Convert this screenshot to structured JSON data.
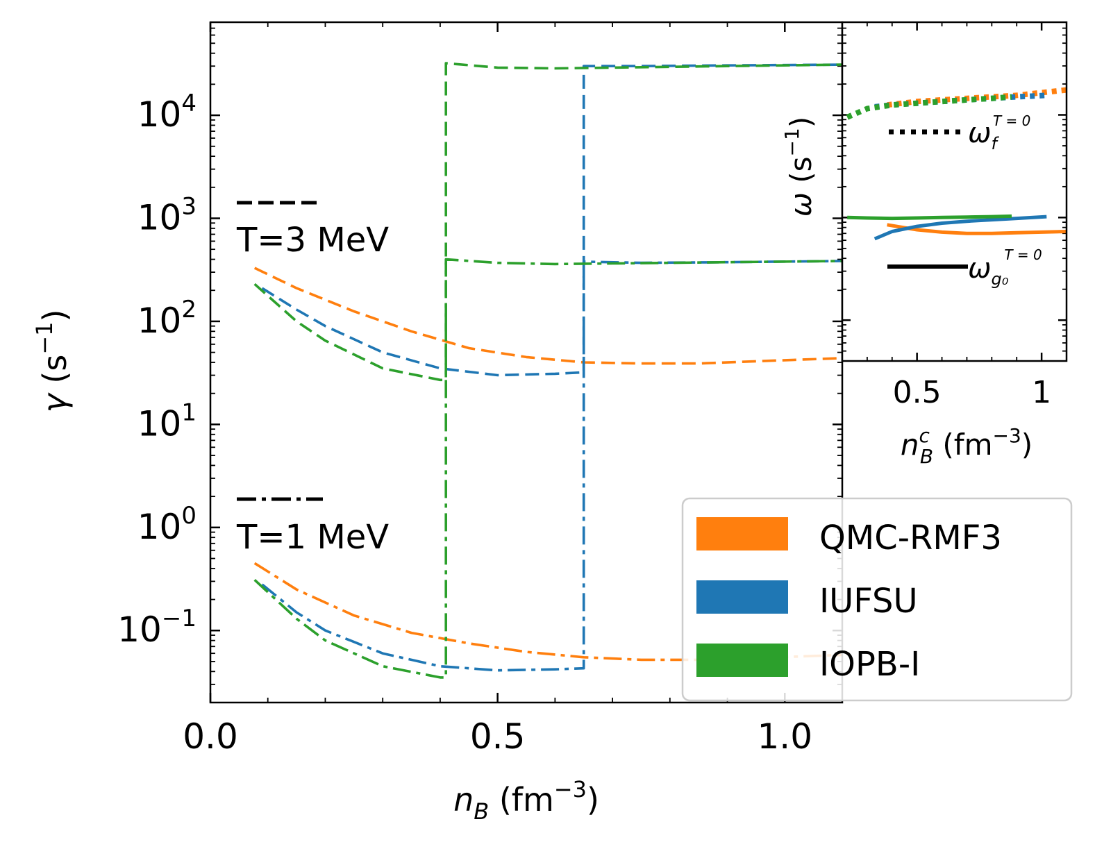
{
  "colors": {
    "orange": "#ff7f0e",
    "blue": "#1f77b4",
    "green": "#2ca02c",
    "axis": "#000000"
  },
  "chart_data": [
    {
      "type": "line",
      "id": "main",
      "xlabel": {
        "base": "n",
        "sub": "B",
        "unit": " (fm",
        "sup": "−3",
        "close": ")"
      },
      "ylabel": {
        "sym": "γ",
        "unit": " (s",
        "sup": "−1",
        "close": ")"
      },
      "xlim": [
        0.0,
        1.1
      ],
      "ylim": [
        0.02,
        80000
      ],
      "yscale": "log",
      "xticks": [
        "0.0",
        "0.5",
        "1.0"
      ],
      "xtick_values": [
        0.0,
        0.5,
        1.0
      ],
      "yticks": [
        {
          "value": 0.1,
          "base": "10",
          "exp": "−1"
        },
        {
          "value": 1,
          "base": "10",
          "exp": "0"
        },
        {
          "value": 10,
          "base": "10",
          "exp": "1"
        },
        {
          "value": 100,
          "base": "10",
          "exp": "2"
        },
        {
          "value": 1000,
          "base": "10",
          "exp": "3"
        },
        {
          "value": 10000,
          "base": "10",
          "exp": "4"
        }
      ],
      "style_labels": [
        {
          "text": "T=3 MeV",
          "style": "dashed"
        },
        {
          "text": "T=1 MeV",
          "style": "dashdot"
        }
      ],
      "legend": {
        "placement": "bottom-right",
        "entries": [
          "QMC-RMF3",
          "IUFSU",
          "IOPB-I"
        ]
      },
      "series": [
        {
          "name": "QMC-RMF3",
          "T": "3 MeV",
          "color": "orange",
          "style": "dashed",
          "x": [
            0.077,
            0.15,
            0.25,
            0.35,
            0.45,
            0.55,
            0.65,
            0.75,
            0.85,
            0.95,
            1.1
          ],
          "y": [
            330,
            210,
            125,
            80,
            55,
            45,
            40,
            39,
            39,
            41,
            44
          ]
        },
        {
          "name": "IUFSU",
          "T": "3 MeV",
          "color": "blue",
          "style": "dashed",
          "x": [
            0.09,
            0.15,
            0.2,
            0.3,
            0.4,
            0.5,
            0.6,
            0.65,
            0.65,
            0.75,
            0.9,
            1.1
          ],
          "y": [
            210,
            130,
            90,
            50,
            35,
            30,
            31,
            32,
            30000,
            30000,
            30500,
            31000
          ]
        },
        {
          "name": "IOPB-I",
          "T": "3 MeV",
          "color": "green",
          "style": "dashed",
          "x": [
            0.077,
            0.15,
            0.2,
            0.3,
            0.4,
            0.41,
            0.41,
            0.5,
            0.6,
            0.7,
            0.9,
            1.1
          ],
          "y": [
            230,
            100,
            65,
            35,
            27,
            27,
            32000,
            29000,
            28500,
            29000,
            30000,
            31000
          ]
        },
        {
          "name": "QMC-RMF3",
          "T": "1 MeV",
          "color": "orange",
          "style": "dashdot",
          "x": [
            0.077,
            0.15,
            0.25,
            0.35,
            0.45,
            0.55,
            0.65,
            0.75,
            0.85,
            0.95,
            1.1
          ],
          "y": [
            0.45,
            0.25,
            0.14,
            0.095,
            0.075,
            0.062,
            0.055,
            0.052,
            0.052,
            0.054,
            0.058
          ]
        },
        {
          "name": "IUFSU",
          "T": "1 MeV",
          "color": "blue",
          "style": "dashdot",
          "x": [
            0.09,
            0.15,
            0.2,
            0.3,
            0.4,
            0.5,
            0.6,
            0.65,
            0.65,
            0.75,
            0.9,
            1.1
          ],
          "y": [
            0.28,
            0.15,
            0.1,
            0.06,
            0.045,
            0.041,
            0.042,
            0.043,
            380,
            370,
            375,
            385
          ]
        },
        {
          "name": "IOPB-I",
          "T": "1 MeV",
          "color": "green",
          "style": "dashdot",
          "x": [
            0.077,
            0.15,
            0.2,
            0.3,
            0.4,
            0.41,
            0.41,
            0.5,
            0.6,
            0.7,
            0.9,
            1.1
          ],
          "y": [
            0.31,
            0.13,
            0.08,
            0.045,
            0.035,
            0.035,
            400,
            370,
            360,
            365,
            375,
            385
          ]
        }
      ]
    },
    {
      "type": "line",
      "id": "inset",
      "xlabel": {
        "base": "n",
        "sup1": "c",
        "sub": "B",
        "unit": " (fm",
        "sup": "−3",
        "close": ")"
      },
      "ylabel": {
        "sym": "ω",
        "unit": " (s",
        "sup": "−1",
        "close": ")"
      },
      "xlim": [
        0.2,
        1.1
      ],
      "ylim": [
        40,
        80000
      ],
      "yscale": "log",
      "xticks": [
        "0.5",
        "1"
      ],
      "xtick_values": [
        0.5,
        1.0
      ],
      "style_labels": [
        {
          "sym": "ω",
          "sub": "f",
          "sup": "T = 0",
          "style": "dotted"
        },
        {
          "sym": "ω",
          "sub": "g₀",
          "sup": "T = 0",
          "style": "solid"
        }
      ],
      "series": [
        {
          "name": "QMC-RMF3",
          "mode": "f",
          "color": "orange",
          "style": "dotted",
          "x": [
            0.38,
            0.5,
            0.6,
            0.7,
            0.8,
            0.9,
            1.0,
            1.1
          ],
          "y": [
            12500,
            13500,
            14000,
            14500,
            15000,
            15500,
            16500,
            17500
          ]
        },
        {
          "name": "IUFSU",
          "mode": "f",
          "color": "blue",
          "style": "dotted",
          "x": [
            0.33,
            0.4,
            0.5,
            0.6,
            0.7,
            0.8,
            0.9,
            1.02
          ],
          "y": [
            12000,
            12500,
            13000,
            13500,
            14000,
            14500,
            15000,
            15500
          ]
        },
        {
          "name": "IOPB-I",
          "mode": "f",
          "color": "green",
          "style": "dotted",
          "x": [
            0.22,
            0.3,
            0.4,
            0.5,
            0.6,
            0.7,
            0.8,
            0.88
          ],
          "y": [
            9500,
            11500,
            12500,
            13000,
            13500,
            14000,
            14500,
            15000
          ]
        },
        {
          "name": "QMC-RMF3",
          "mode": "g0",
          "color": "orange",
          "style": "solid",
          "x": [
            0.38,
            0.5,
            0.6,
            0.7,
            0.8,
            0.9,
            1.0,
            1.1
          ],
          "y": [
            850,
            760,
            720,
            700,
            700,
            710,
            720,
            730
          ]
        },
        {
          "name": "IUFSU",
          "mode": "g0",
          "color": "blue",
          "style": "solid",
          "x": [
            0.33,
            0.4,
            0.5,
            0.6,
            0.7,
            0.8,
            0.9,
            1.02
          ],
          "y": [
            620,
            730,
            820,
            880,
            920,
            950,
            980,
            1020
          ]
        },
        {
          "name": "IOPB-I",
          "mode": "g0",
          "color": "green",
          "style": "solid",
          "x": [
            0.22,
            0.3,
            0.4,
            0.5,
            0.6,
            0.7,
            0.8,
            0.88
          ],
          "y": [
            1000,
            990,
            980,
            990,
            1000,
            1010,
            1020,
            1030
          ]
        }
      ]
    }
  ]
}
